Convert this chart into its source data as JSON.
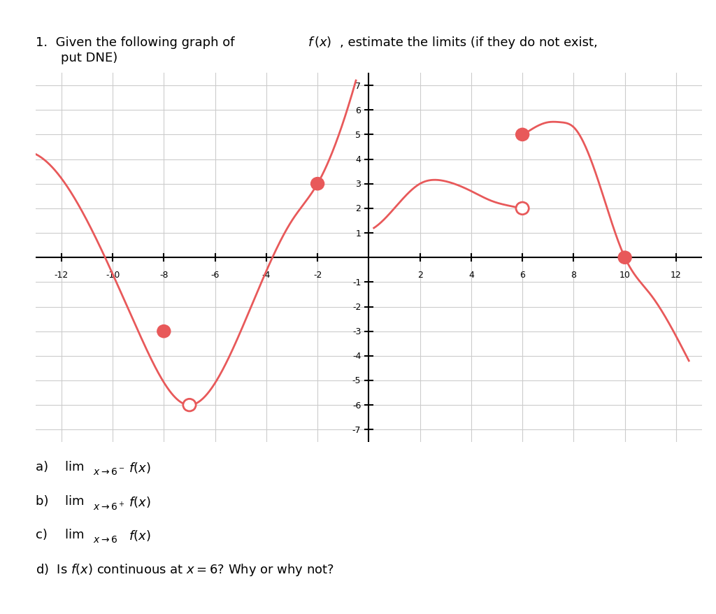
{
  "title_text": "Given the following graph of f(x), estimate the limits (if they do not exist,\nput DNE)",
  "title_prefix": "1.",
  "curve_color": "#e8595a",
  "dot_filled_color": "#e8595a",
  "dot_open_color": "#e8595a",
  "background_color": "#ffffff",
  "grid_color": "#cccccc",
  "axis_color": "#000000",
  "xlim": [
    -13,
    13
  ],
  "ylim": [
    -7.5,
    7.5
  ],
  "xticks": [
    -12,
    -10,
    -8,
    -6,
    -4,
    -2,
    2,
    4,
    6,
    8,
    10,
    12
  ],
  "yticks": [
    -7,
    -6,
    -5,
    -4,
    -3,
    -2,
    -1,
    1,
    2,
    3,
    4,
    5,
    6,
    7
  ],
  "open_circles": [
    [
      -7,
      -6
    ],
    [
      6,
      2
    ]
  ],
  "filled_circles": [
    [
      -8,
      -3
    ],
    [
      -2,
      3
    ],
    [
      6,
      5
    ],
    [
      10,
      0
    ]
  ],
  "questions": [
    "a)  lim  f(x)",
    "      x→6⁻",
    "b)  lim  f(x)",
    "      x→6⁺",
    "c)  lim f(x)",
    "      x→6",
    "d)  Is f(x) continuous at x = 6? Why or why not?"
  ]
}
